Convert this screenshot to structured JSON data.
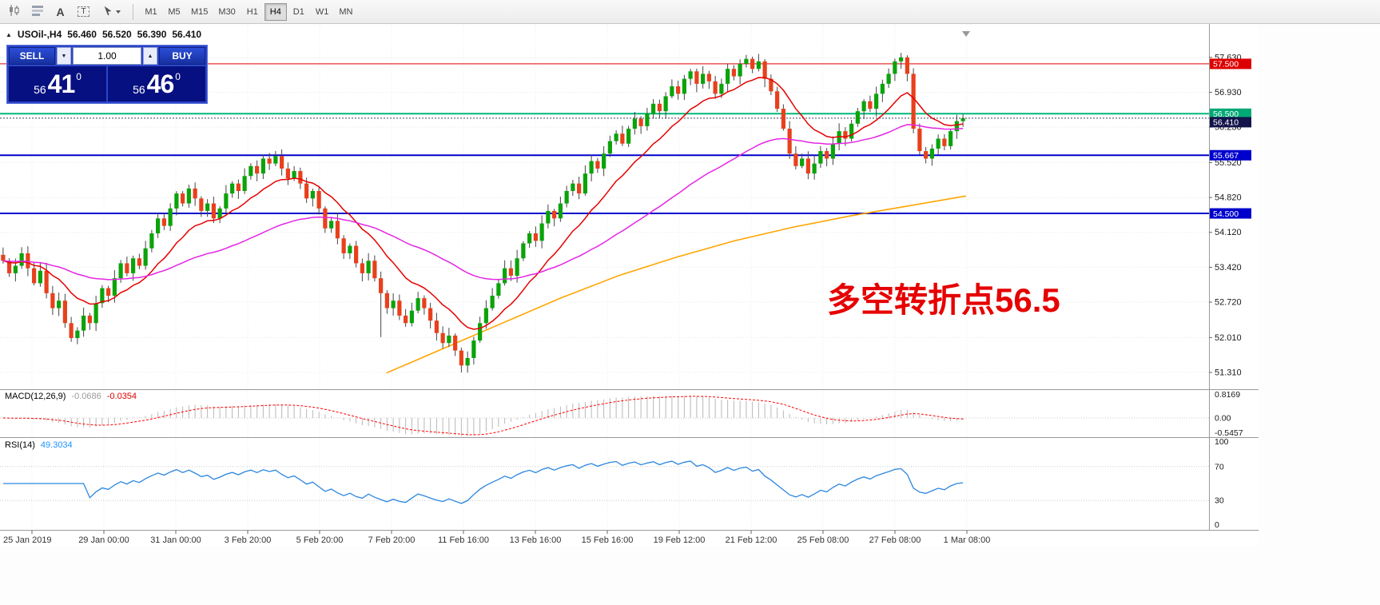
{
  "toolbar": {
    "tools": [
      {
        "name": "candlestick-style"
      },
      {
        "name": "indicator-list"
      },
      {
        "name": "font-tool",
        "label": "A"
      },
      {
        "name": "text-tool",
        "label": "T"
      },
      {
        "name": "cursor-tool"
      }
    ],
    "timeframes": [
      "M1",
      "M5",
      "M15",
      "M30",
      "H1",
      "H4",
      "D1",
      "W1",
      "MN"
    ],
    "active_timeframe": "H4"
  },
  "chart_header": {
    "expand_marker": "▲",
    "symbol": "USOil-,H4",
    "open": "56.460",
    "high": "56.520",
    "low": "56.390",
    "close": "56.410"
  },
  "order_panel": {
    "sell_label": "SELL",
    "buy_label": "BUY",
    "volume": "1.00",
    "vol_down_glyph": "▼",
    "vol_up_glyph": "▲",
    "bid": {
      "prefix": "56",
      "main": "41",
      "sup": "0"
    },
    "ask": {
      "prefix": "56",
      "main": "46",
      "sup": "0"
    }
  },
  "annotation": {
    "text": "多空转折点56.5",
    "color": "#e60000"
  },
  "indicators": {
    "macd": {
      "title": "MACD(12,26,9)",
      "value_main": "-0.0686",
      "value_signal": "-0.0354",
      "axis_labels": [
        "0.8169",
        "0.00",
        "-0.5457"
      ],
      "axis_max": 0.8169,
      "axis_min": -0.5457
    },
    "rsi": {
      "title": "RSI(14)",
      "value": "49.3034",
      "axis_labels": [
        "100",
        "70",
        "30",
        "0"
      ]
    }
  },
  "price_axis": {
    "tick_labels": [
      "57.630",
      "56.930",
      "56.230",
      "55.520",
      "54.820",
      "54.120",
      "53.420",
      "52.720",
      "52.010",
      "51.310"
    ],
    "badges": [
      {
        "value": "57.500",
        "bg": "#dd0000"
      },
      {
        "value": "56.500",
        "bg": "#00a876"
      },
      {
        "value": "56.410",
        "bg": "#13144a"
      },
      {
        "value": "55.667",
        "bg": "#0000cd"
      },
      {
        "value": "54.500",
        "bg": "#0000cd"
      }
    ]
  },
  "time_axis": {
    "labels": [
      "25 Jan 2019",
      "29 Jan 00:00",
      "31 Jan 00:00",
      "3 Feb 20:00",
      "5 Feb 20:00",
      "7 Feb 20:00",
      "11 Feb 16:00",
      "13 Feb 16:00",
      "15 Feb 16:00",
      "19 Feb 12:00",
      "21 Feb 12:00",
      "25 Feb 08:00",
      "27 Feb 08:00",
      "1 Mar 08:00"
    ]
  },
  "chart_data": {
    "type": "candlestick",
    "symbol": "USOil",
    "timeframe": "H4",
    "ohlc_header": [
      56.46,
      56.52,
      56.39,
      56.41
    ],
    "visible_price_range": [
      50.99,
      58.3
    ],
    "closes": [
      53.55,
      53.3,
      53.45,
      53.7,
      53.4,
      53.1,
      53.35,
      52.9,
      52.6,
      52.75,
      52.3,
      52.0,
      52.15,
      52.45,
      52.3,
      52.7,
      53.0,
      52.85,
      53.2,
      53.5,
      53.3,
      53.6,
      53.45,
      53.8,
      54.1,
      54.4,
      54.25,
      54.6,
      54.9,
      54.7,
      55.0,
      54.8,
      54.55,
      54.7,
      54.4,
      54.6,
      54.9,
      55.1,
      54.95,
      55.25,
      55.45,
      55.3,
      55.6,
      55.5,
      55.65,
      55.4,
      55.2,
      55.35,
      55.1,
      54.8,
      54.95,
      54.6,
      54.2,
      54.35,
      54.0,
      53.7,
      53.85,
      53.5,
      53.3,
      53.55,
      53.2,
      52.9,
      52.6,
      52.75,
      52.45,
      52.3,
      52.55,
      52.8,
      52.6,
      52.35,
      52.1,
      51.9,
      52.05,
      51.75,
      51.45,
      51.6,
      51.95,
      52.3,
      52.6,
      52.85,
      53.1,
      53.4,
      53.25,
      53.6,
      53.9,
      54.1,
      53.95,
      54.3,
      54.55,
      54.4,
      54.7,
      54.95,
      55.1,
      54.9,
      55.3,
      55.55,
      55.4,
      55.7,
      55.95,
      56.1,
      55.9,
      56.2,
      56.4,
      56.25,
      56.5,
      56.7,
      56.55,
      56.85,
      57.05,
      56.9,
      57.2,
      57.35,
      57.1,
      57.3,
      57.15,
      56.9,
      57.1,
      57.4,
      57.25,
      57.5,
      57.6,
      57.4,
      57.55,
      57.2,
      56.95,
      56.6,
      56.2,
      55.7,
      55.45,
      55.6,
      55.3,
      55.5,
      55.75,
      55.6,
      55.9,
      56.15,
      56.0,
      56.3,
      56.55,
      56.75,
      56.6,
      56.9,
      57.1,
      57.3,
      57.55,
      57.63,
      57.3,
      56.2,
      55.75,
      55.6,
      55.8,
      56.0,
      55.85,
      56.15,
      56.35,
      56.41
    ],
    "wick_low_overrides": [
      [
        61,
        52.02
      ],
      [
        74,
        51.31
      ]
    ],
    "wick_high_overrides": [
      [
        120,
        57.68
      ],
      [
        145,
        57.72
      ]
    ],
    "levels": [
      {
        "price": 57.5,
        "color": "#dd0000",
        "style": "solid",
        "width": 1
      },
      {
        "price": 56.5,
        "color": "#00b87a",
        "style": "solid",
        "width": 2
      },
      {
        "price": 56.41,
        "color": "#3c3c66",
        "style": "dotted",
        "width": 1
      },
      {
        "price": 55.667,
        "color": "#0000cd",
        "style": "solid",
        "width": 2
      },
      {
        "price": 54.5,
        "color": "#0000cd",
        "style": "solid",
        "width": 2
      }
    ],
    "moving_averages": [
      {
        "type": "ema",
        "period": 13,
        "color": "#e60000"
      },
      {
        "type": "ema",
        "period": 50,
        "color": "#e326e3"
      }
    ],
    "ma_orange": {
      "color": "#ffa500",
      "points": [
        [
          0.4,
          51.3
        ],
        [
          0.46,
          51.8
        ],
        [
          0.52,
          52.3
        ],
        [
          0.58,
          52.8
        ],
        [
          0.64,
          53.25
        ],
        [
          0.7,
          53.62
        ],
        [
          0.76,
          53.95
        ],
        [
          0.82,
          54.22
        ],
        [
          0.88,
          54.45
        ],
        [
          0.94,
          54.65
        ],
        [
          1.0,
          54.85
        ]
      ]
    },
    "colors": {
      "up": "#0aa30a",
      "down": "#e8401c",
      "wick": "#444444",
      "macd_hist": "#b8b8b8",
      "macd_signal": "#ff0000",
      "rsi_line": "#2a86e0"
    }
  }
}
